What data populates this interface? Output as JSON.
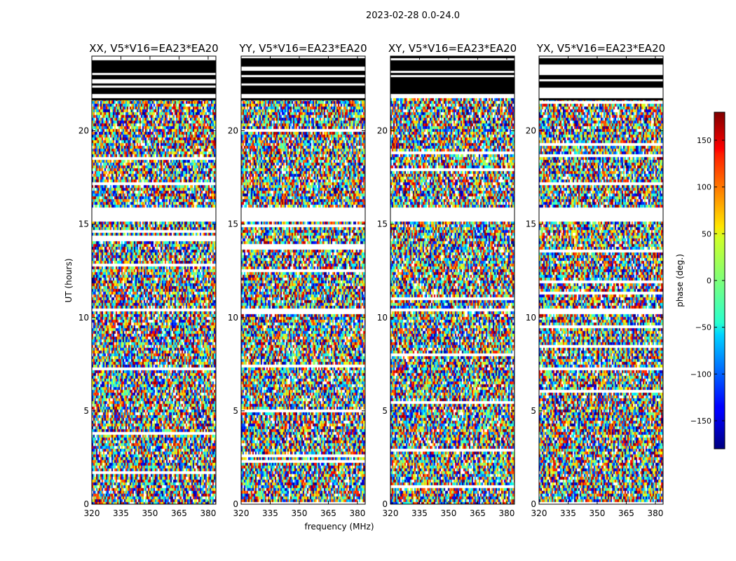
{
  "figure": {
    "suptitle": "2023-02-28 0.0-24.0",
    "xlabel": "frequency (MHz)",
    "ylabel": "UT (hours)"
  },
  "chart_data": {
    "type": "heatmap",
    "x_ticks": [
      320,
      335,
      350,
      365,
      380
    ],
    "y_ticks": [
      0,
      5,
      10,
      15,
      20
    ],
    "xlim": [
      320,
      384
    ],
    "ylim": [
      0,
      24
    ],
    "panels": [
      {
        "title": "XX, V5*V16=EA23*EA20"
      },
      {
        "title": "YY, V5*V16=EA23*EA20"
      },
      {
        "title": "XY, V5*V16=EA23*EA20"
      },
      {
        "title": "YX, V5*V16=EA23*EA20"
      }
    ],
    "flagged_ut_ranges": [
      [
        0.55,
        0.62
      ],
      [
        15.15,
        15.85
      ],
      [
        10.35,
        10.55
      ],
      [
        21.7,
        24.0
      ]
    ],
    "colorbar": {
      "label": "phase (deg.)",
      "ticks": [
        150,
        100,
        50,
        0,
        -50,
        -100,
        -150
      ],
      "range": [
        -180,
        180
      ],
      "colormap": "jet"
    }
  }
}
